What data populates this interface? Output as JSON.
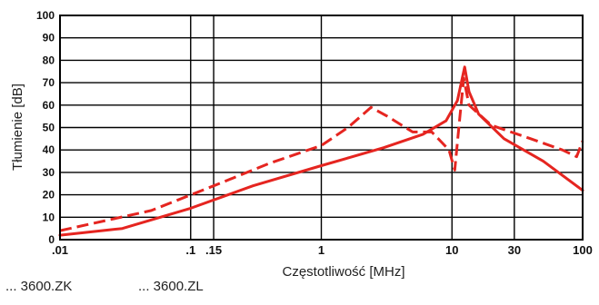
{
  "chart_data": {
    "type": "line",
    "xscale": "log",
    "xlabel": "Częstotliwość [MHz]",
    "ylabel": "Tłumienie [dB]",
    "xlim": [
      0.01,
      100
    ],
    "ylim": [
      0,
      100
    ],
    "grid": true,
    "legend_placement": "bottom-left",
    "xticks": [
      {
        "value": 0.01,
        "label": ".01"
      },
      {
        "value": 0.1,
        "label": ".1"
      },
      {
        "value": 0.15,
        "label": ".15"
      },
      {
        "value": 1,
        "label": "1"
      },
      {
        "value": 10,
        "label": "10"
      },
      {
        "value": 30,
        "label": "30"
      },
      {
        "value": 100,
        "label": "100"
      }
    ],
    "yticks": [
      0,
      10,
      20,
      30,
      40,
      50,
      60,
      70,
      80,
      90,
      100
    ],
    "legend": [
      {
        "prefix": "...",
        "label": "3600.ZK"
      },
      {
        "prefix": "...",
        "label": "3600.ZL"
      }
    ],
    "series": [
      {
        "id": "solid",
        "color": "#e52520",
        "style": "solid",
        "points": [
          [
            0.01,
            2
          ],
          [
            0.03,
            5
          ],
          [
            0.1,
            14
          ],
          [
            0.3,
            24
          ],
          [
            1,
            33
          ],
          [
            3,
            41
          ],
          [
            6,
            47
          ],
          [
            9,
            53
          ],
          [
            11,
            62
          ],
          [
            12.5,
            77
          ],
          [
            13.5,
            66
          ],
          [
            16,
            56
          ],
          [
            25,
            45
          ],
          [
            50,
            35
          ],
          [
            100,
            22
          ]
        ]
      },
      {
        "id": "dashed",
        "color": "#e52520",
        "style": "dashed",
        "points": [
          [
            0.01,
            4
          ],
          [
            0.05,
            13
          ],
          [
            0.15,
            24
          ],
          [
            0.4,
            34
          ],
          [
            1,
            42
          ],
          [
            1.6,
            50
          ],
          [
            2.4,
            59
          ],
          [
            3.2,
            55
          ],
          [
            5,
            48
          ],
          [
            7,
            48
          ],
          [
            9.5,
            40
          ],
          [
            10.5,
            31
          ],
          [
            11.5,
            55
          ],
          [
            12.3,
            72
          ],
          [
            13.5,
            60
          ],
          [
            20,
            51
          ],
          [
            40,
            45
          ],
          [
            70,
            40
          ],
          [
            90,
            37
          ],
          [
            100,
            44
          ]
        ]
      }
    ]
  }
}
